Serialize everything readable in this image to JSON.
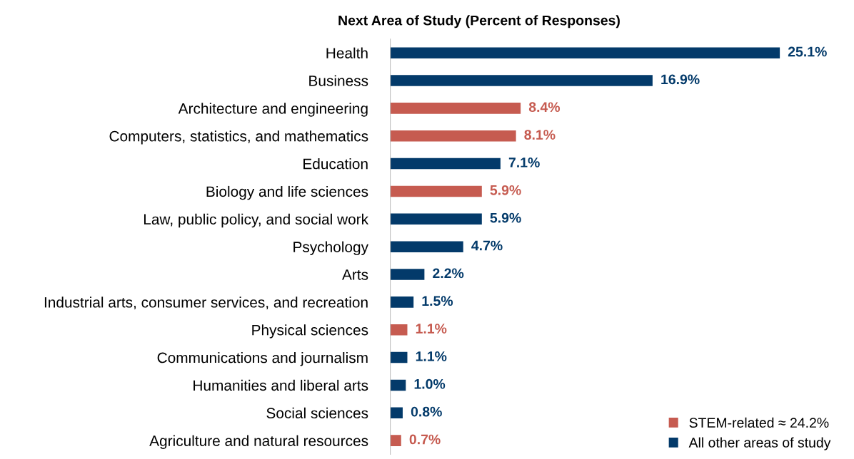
{
  "chart_data": {
    "type": "bar",
    "orientation": "horizontal",
    "title": "Next Area of Study (Percent of Responses)",
    "categories": [
      "Health",
      "Business",
      "Architecture and engineering",
      "Computers, statistics, and mathematics",
      "Education",
      "Biology and life sciences",
      "Law, public policy, and social work",
      "Psychology",
      "Arts",
      "Industrial arts, consumer services, and recreation",
      "Physical sciences",
      "Communications and journalism",
      "Humanities and liberal arts",
      "Social sciences",
      "Agriculture and natural resources"
    ],
    "series": [
      {
        "name": "STEM-related ≈ 24.2%",
        "color": "#c65b50",
        "values": [
          null,
          null,
          8.4,
          8.1,
          null,
          5.9,
          null,
          null,
          null,
          null,
          1.1,
          null,
          null,
          null,
          0.7
        ],
        "value_labels": [
          null,
          null,
          "8.4%",
          "8.1%",
          null,
          "5.9%",
          null,
          null,
          null,
          null,
          "1.1%",
          null,
          null,
          null,
          "0.7%"
        ]
      },
      {
        "name": "All other areas of study",
        "color": "#033a6a",
        "values": [
          25.1,
          16.9,
          null,
          null,
          7.1,
          null,
          5.9,
          4.7,
          2.2,
          1.5,
          null,
          1.1,
          1.0,
          0.8,
          null
        ],
        "value_labels": [
          "25.1%",
          "16.9%",
          null,
          null,
          "7.1%",
          null,
          "5.9%",
          "4.7%",
          "2.2%",
          "1.5%",
          null,
          "1.1%",
          "1.0%",
          "0.8%",
          null
        ]
      }
    ],
    "legend": "bottom right",
    "grid": false
  }
}
